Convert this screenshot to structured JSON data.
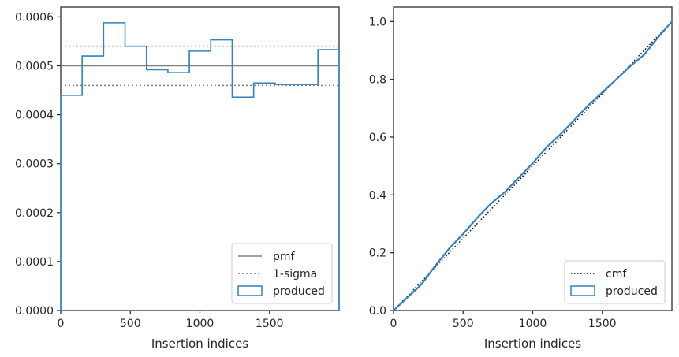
{
  "chart_data": [
    {
      "type": "histogram",
      "xlabel": "Insertion indices",
      "ylabel": "",
      "xlim": [
        0,
        2000
      ],
      "ylim": [
        0,
        0.00062
      ],
      "xticks": [
        0,
        500,
        1000,
        1500
      ],
      "xtick_labels": [
        "0",
        "500",
        "1000",
        "1500"
      ],
      "yticks": [
        0,
        0.0001,
        0.0002,
        0.0003,
        0.0004,
        0.0005,
        0.0006
      ],
      "ytick_labels": [
        "0.0000",
        "0.0001",
        "0.0002",
        "0.0003",
        "0.0004",
        "0.0005",
        "0.0006"
      ],
      "bin_edges": [
        0,
        154,
        308,
        462,
        616,
        770,
        924,
        1078,
        1232,
        1386,
        1540,
        1694,
        1848,
        2000
      ],
      "values": [
        0.00044,
        0.00052,
        0.000588,
        0.00054,
        0.000492,
        0.000486,
        0.00053,
        0.000553,
        0.000436,
        0.000465,
        0.000462,
        0.000462,
        0.000533
      ],
      "pmf": 0.0005,
      "sigma_band": [
        0.00046,
        0.00054
      ],
      "legend": {
        "position": "lower-right",
        "entries": [
          "pmf",
          "1-sigma",
          "produced"
        ]
      },
      "colors": {
        "produced": "#3182bd",
        "pmf": "#808080",
        "sigma": "#808080"
      },
      "grid": false
    },
    {
      "type": "line",
      "xlabel": "Insertion indices",
      "ylabel": "",
      "xlim": [
        0,
        2000
      ],
      "ylim": [
        0,
        1.05
      ],
      "xticks": [
        0,
        500,
        1000,
        1500
      ],
      "xtick_labels": [
        "0",
        "500",
        "1000",
        "1500"
      ],
      "yticks": [
        0,
        0.2,
        0.4,
        0.6,
        0.8,
        1.0
      ],
      "ytick_labels": [
        "0.0",
        "0.2",
        "0.4",
        "0.6",
        "0.8",
        "1.0"
      ],
      "series": [
        {
          "name": "cmf",
          "x": [
            0,
            2000
          ],
          "y": [
            0,
            1.0
          ]
        },
        {
          "name": "produced",
          "x": [
            0,
            100,
            200,
            300,
            400,
            500,
            600,
            700,
            800,
            900,
            1000,
            1100,
            1200,
            1300,
            1400,
            1500,
            1600,
            1700,
            1800,
            1900,
            2000
          ],
          "y": [
            0,
            0.045,
            0.09,
            0.155,
            0.215,
            0.265,
            0.32,
            0.37,
            0.41,
            0.46,
            0.51,
            0.565,
            0.61,
            0.66,
            0.71,
            0.755,
            0.8,
            0.845,
            0.885,
            0.945,
            1.0
          ]
        }
      ],
      "legend": {
        "position": "lower-right",
        "entries": [
          "cmf",
          "produced"
        ]
      },
      "colors": {
        "produced": "#3182bd",
        "cmf": "#000000"
      },
      "grid": false
    }
  ]
}
